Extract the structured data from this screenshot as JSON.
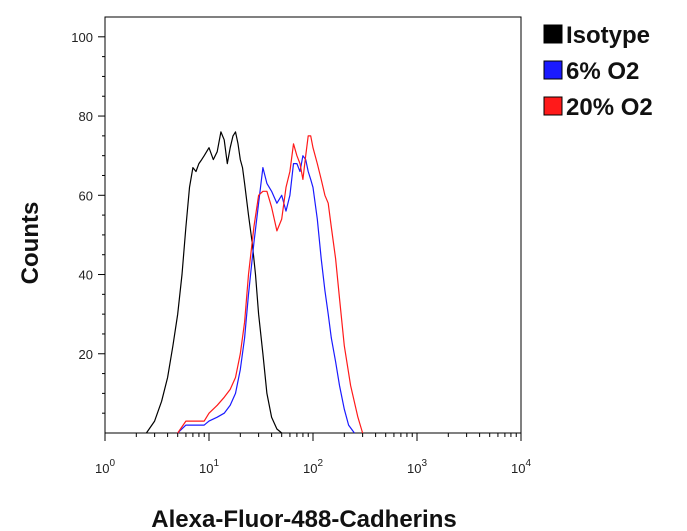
{
  "chart_data": {
    "type": "line",
    "title": "",
    "xlabel": "Alexa-Fluor-488-Cadherins",
    "ylabel": "Counts",
    "x_scale": "log",
    "xlim": [
      1,
      10000
    ],
    "ylim": [
      0,
      105
    ],
    "y_ticks": [
      20,
      40,
      60,
      80,
      100
    ],
    "y_tick_labels": [
      "20",
      "40",
      "60",
      "80",
      "100"
    ],
    "x_ticks": [
      1,
      10,
      100,
      1000,
      10000
    ],
    "x_tick_labels": [
      {
        "base": "10",
        "exp": "0"
      },
      {
        "base": "10",
        "exp": "1"
      },
      {
        "base": "10",
        "exp": "2"
      },
      {
        "base": "10",
        "exp": "3"
      },
      {
        "base": "10",
        "exp": "4"
      }
    ],
    "grid": false,
    "legend_position": "top-right-outside",
    "series": [
      {
        "name": "Isotype",
        "color": "#000000",
        "x": [
          2.5,
          3.0,
          3.5,
          4.0,
          4.5,
          5.0,
          5.5,
          6.0,
          6.5,
          7.0,
          7.5,
          8.0,
          8.5,
          9.0,
          10,
          11,
          12,
          13,
          14,
          15,
          16,
          17,
          18,
          19,
          20,
          21,
          22,
          24,
          26,
          28,
          30,
          33,
          36,
          40,
          45,
          50
        ],
        "values": [
          0,
          3,
          8,
          14,
          22,
          30,
          40,
          52,
          62,
          67,
          66,
          68,
          69,
          70,
          72,
          69,
          71,
          76,
          74,
          68,
          72,
          75,
          76,
          73,
          69,
          67,
          63,
          55,
          48,
          40,
          30,
          20,
          10,
          4,
          1,
          0
        ]
      },
      {
        "name": "6% O2",
        "color": "#1a1aff",
        "x": [
          5,
          6,
          7,
          8,
          9,
          10,
          12,
          14,
          16,
          18,
          20,
          22,
          24,
          27,
          30,
          33,
          36,
          40,
          45,
          50,
          55,
          60,
          65,
          70,
          75,
          80,
          85,
          90,
          95,
          100,
          110,
          120,
          130,
          140,
          150,
          165,
          180,
          200,
          220,
          250
        ],
        "values": [
          0,
          2,
          2,
          2,
          2,
          3,
          4,
          5,
          7,
          10,
          16,
          24,
          35,
          48,
          58,
          67,
          63,
          61,
          58,
          60,
          56,
          60,
          68,
          68,
          66,
          70,
          69,
          66,
          64,
          62,
          54,
          44,
          36,
          30,
          24,
          18,
          12,
          6,
          2,
          0
        ]
      },
      {
        "name": "20% O2",
        "color": "#ff1a1a",
        "x": [
          5,
          6,
          7,
          8,
          9,
          10,
          12,
          14,
          16,
          18,
          20,
          22,
          24,
          27,
          30,
          33,
          36,
          40,
          45,
          50,
          55,
          60,
          65,
          70,
          75,
          80,
          85,
          90,
          95,
          100,
          110,
          120,
          130,
          140,
          150,
          165,
          180,
          200,
          230,
          270,
          300
        ],
        "values": [
          0,
          3,
          3,
          3,
          3,
          5,
          7,
          9,
          11,
          14,
          20,
          28,
          40,
          52,
          60,
          61,
          61,
          57,
          51,
          54,
          62,
          66,
          73,
          70,
          68,
          64,
          70,
          75,
          75,
          72,
          68,
          64,
          60,
          58,
          52,
          44,
          34,
          22,
          12,
          4,
          0
        ]
      }
    ]
  }
}
